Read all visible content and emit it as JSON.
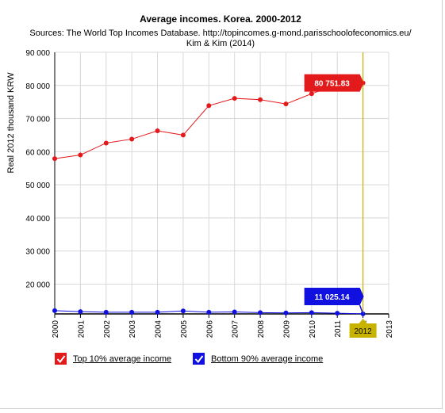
{
  "chart_data": {
    "type": "line",
    "title": "Average incomes. Korea. 2000-2012",
    "subtitle_line1": "Sources: The World Top Incomes Database. http://topincomes.g-mond.parisschoolofeconomics.eu/",
    "subtitle_line2": "Kim & Kim (2014)",
    "ylabel": "Real 2012 thousand KRW",
    "xlabel": "",
    "x": [
      2000,
      2001,
      2002,
      2003,
      2004,
      2005,
      2006,
      2007,
      2008,
      2009,
      2010,
      2011,
      2012
    ],
    "x_ticks": [
      "2000",
      "2001",
      "2002",
      "2003",
      "2004",
      "2005",
      "2006",
      "2007",
      "2008",
      "2009",
      "2010",
      "2011",
      "2012",
      "2013"
    ],
    "xlim": [
      2000,
      2013
    ],
    "y_ticks": [
      "20 000",
      "30 000",
      "40 000",
      "50 000",
      "60 000",
      "70 000",
      "80 000",
      "90 000"
    ],
    "ylim": [
      11000,
      90000
    ],
    "grid": true,
    "series": [
      {
        "name": "Top 10% average income",
        "color": "#e31a1c",
        "values": [
          57900,
          59000,
          62600,
          63800,
          66300,
          65000,
          73900,
          76100,
          75700,
          74400,
          77500,
          80200,
          80751.83
        ],
        "tooltip": "80 751.83"
      },
      {
        "name": "Bottom 90% average income",
        "color": "#1010e0",
        "values": [
          12000,
          11700,
          11500,
          11500,
          11500,
          11900,
          11500,
          11600,
          11400,
          11300,
          11400,
          11200,
          11025.14
        ],
        "tooltip": "11 025.14"
      }
    ],
    "cursor_label": "2012",
    "cursor_color": "#c8b400",
    "legend_position": "bottom-left"
  }
}
